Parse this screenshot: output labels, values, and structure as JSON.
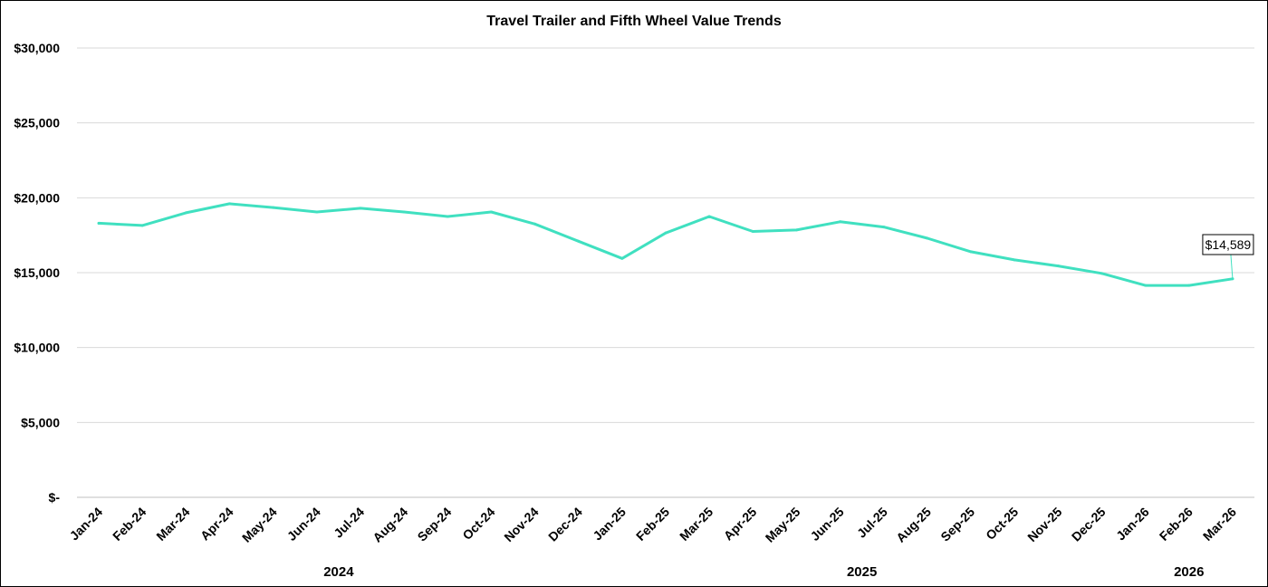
{
  "chart_data": {
    "type": "line",
    "title": "Travel Trailer and Fifth Wheel Value Trends",
    "xlabel": "",
    "ylabel": "",
    "ylim": [
      0,
      30000
    ],
    "y_ticks": [
      0,
      5000,
      10000,
      15000,
      20000,
      25000,
      30000
    ],
    "y_tick_labels": [
      "$-",
      "$5,000",
      "$10,000",
      "$15,000",
      "$20,000",
      "$25,000",
      "$30,000"
    ],
    "grid": true,
    "legend": "none",
    "categories": [
      "Jan-24",
      "Feb-24",
      "Mar-24",
      "Apr-24",
      "May-24",
      "Jun-24",
      "Jul-24",
      "Aug-24",
      "Sep-24",
      "Oct-24",
      "Nov-24",
      "Dec-24",
      "Jan-25",
      "Feb-25",
      "Mar-25",
      "Apr-25",
      "May-25",
      "Jun-25",
      "Jul-25",
      "Aug-25",
      "Sep-25",
      "Oct-25",
      "Nov-25",
      "Dec-25",
      "Jan-26",
      "Feb-26",
      "Mar-26"
    ],
    "year_groups": [
      {
        "label": "2024",
        "start": 0,
        "end": 11
      },
      {
        "label": "2025",
        "start": 12,
        "end": 23
      },
      {
        "label": "2026",
        "start": 24,
        "end": 26
      }
    ],
    "series": [
      {
        "color": "#40E0C0",
        "values": [
          18300,
          18150,
          19000,
          19600,
          19350,
          19050,
          19300,
          19050,
          18750,
          19050,
          18250,
          17100,
          15950,
          17650,
          18750,
          17750,
          17850,
          18400,
          18050,
          17300,
          16400,
          15850,
          15450,
          14950,
          14150,
          14150,
          14589
        ]
      }
    ],
    "annotation": {
      "label": "$14,589",
      "index": 26
    }
  }
}
